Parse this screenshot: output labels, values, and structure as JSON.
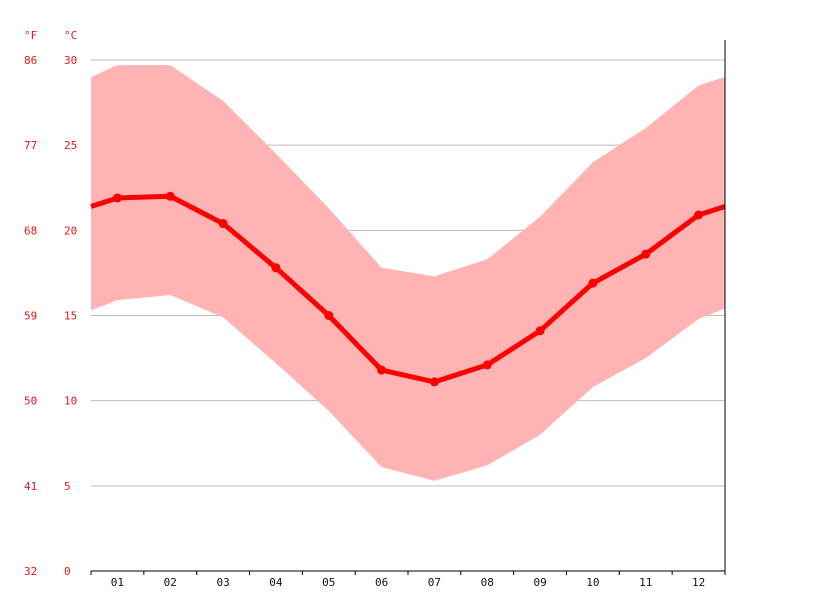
{
  "chart_data": {
    "type": "area",
    "title": "",
    "xlabel": "",
    "ylabel": "",
    "categories": [
      "01",
      "02",
      "03",
      "04",
      "05",
      "06",
      "07",
      "08",
      "09",
      "10",
      "11",
      "12"
    ],
    "series": [
      {
        "values": [
          21.9,
          22.0,
          20.4,
          17.8,
          15.0,
          11.8,
          11.1,
          12.1,
          14.1,
          16.9,
          18.6,
          20.9
        ]
      }
    ],
    "band": {
      "upper": [
        29.7,
        29.7,
        27.6,
        24.5,
        21.3,
        17.8,
        17.3,
        18.3,
        20.8,
        24.0,
        26.0,
        28.5
      ],
      "lower": [
        15.9,
        16.2,
        14.9,
        12.2,
        9.4,
        6.1,
        5.3,
        6.2,
        8.0,
        10.8,
        12.5,
        14.8
      ]
    },
    "wrap": {
      "upper_left_edge": 29.0,
      "upper_right_edge": 29.0,
      "lower_left_edge": 15.3,
      "lower_right_edge": 15.4,
      "mean_left_edge": 21.4,
      "mean_right_edge": 21.4
    },
    "ylim": [
      0,
      30
    ],
    "y_ticks_c": [
      "0",
      "5",
      "10",
      "15",
      "20",
      "25",
      "30"
    ],
    "y_ticks_f": [
      "32",
      "41",
      "50",
      "59",
      "68",
      "77",
      "86"
    ],
    "unit_f": "°F",
    "unit_c": "°C",
    "grid": true,
    "colors": {
      "line": "#ff0000",
      "band": "#ffb3b3",
      "axis_text": "#e31a1c",
      "grid": "#bdbdbd"
    }
  }
}
